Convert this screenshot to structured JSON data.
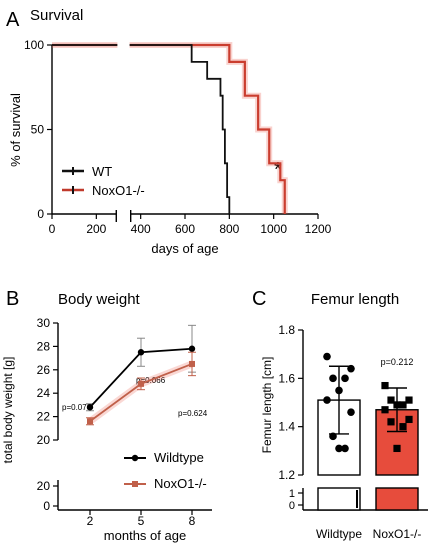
{
  "chart_data": [
    {
      "panel": "A",
      "type": "line",
      "title": "Survival",
      "xlabel": "days of age",
      "ylabel": "% of survival",
      "xlim": [
        0,
        1200
      ],
      "ylim": [
        0,
        100
      ],
      "x_ticks": [
        "0",
        "200",
        "400",
        "600",
        "800",
        "1000",
        "1200"
      ],
      "y_ticks": [
        "0",
        "50",
        "100"
      ],
      "axis_break": "x between 300 and 350",
      "annotation": "*",
      "legend_position": "bottom-left",
      "series": [
        {
          "name": "WT",
          "color": "#111111",
          "style": "step",
          "x": [
            0,
            510,
            630,
            700,
            760,
            770,
            780,
            790,
            800
          ],
          "y": [
            100,
            100,
            90,
            80,
            70,
            50,
            30,
            10,
            0
          ]
        },
        {
          "name": "NoxO1-/-",
          "color": "#c0392b",
          "style": "step",
          "x": [
            0,
            620,
            800,
            870,
            930,
            980,
            1030,
            1050
          ],
          "y": [
            100,
            100,
            90,
            70,
            50,
            30,
            20,
            0
          ]
        }
      ]
    },
    {
      "panel": "B",
      "type": "line",
      "title": "Body weight",
      "xlabel": "months of age",
      "ylabel": "total body weight [g]",
      "categories": [
        "2",
        "5",
        "8"
      ],
      "y_ticks_upper": [
        "20",
        "22",
        "24",
        "26",
        "28",
        "30"
      ],
      "y_ticks_lower": [
        "0",
        "20"
      ],
      "ylim": [
        20,
        30
      ],
      "legend_position": "bottom-right",
      "series": [
        {
          "name": "Wildtype",
          "color": "#000000",
          "marker": "circle",
          "values": [
            22.8,
            27.5,
            27.8
          ],
          "err": [
            0.3,
            1.2,
            2.0
          ]
        },
        {
          "name": "NoxO1-/-",
          "color": "#c0604a",
          "marker": "square",
          "values": [
            21.6,
            24.8,
            26.5
          ],
          "err": [
            0.3,
            0.5,
            1.0
          ]
        }
      ],
      "annotations": [
        "p=0.073",
        "p=0.066",
        "p=0.624"
      ]
    },
    {
      "panel": "C",
      "type": "bar",
      "title": "Femur length",
      "ylabel": "Femur length [cm]",
      "categories": [
        "Wildtype",
        "NoxO1-/-"
      ],
      "y_ticks_upper": [
        "1.2",
        "1.4",
        "1.6",
        "1.8"
      ],
      "y_ticks_lower": [
        "0",
        "1"
      ],
      "ylim": [
        1.2,
        1.8
      ],
      "series": [
        {
          "name": "mean",
          "values": [
            1.51,
            1.47
          ],
          "sd": [
            0.14,
            0.09
          ],
          "colors": [
            "#ffffff",
            "#e74c3c"
          ]
        }
      ],
      "points": [
        {
          "group": "Wildtype",
          "marker": "circle",
          "values": [
            1.69,
            1.64,
            1.6,
            1.6,
            1.55,
            1.51,
            1.46,
            1.36,
            1.31,
            1.31
          ]
        },
        {
          "group": "NoxO1-/-",
          "marker": "square",
          "values": [
            1.57,
            1.51,
            1.51,
            1.49,
            1.49,
            1.47,
            1.43,
            1.42,
            1.4,
            1.31
          ]
        }
      ],
      "annotation": "p=0.212"
    }
  ],
  "panels": {
    "a": "A",
    "b": "B",
    "c": "C"
  }
}
